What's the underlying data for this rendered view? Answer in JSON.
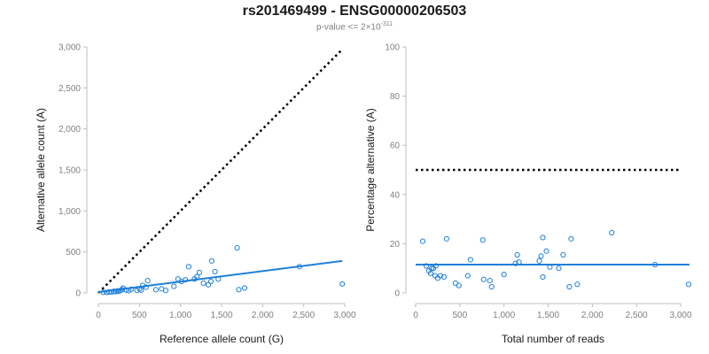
{
  "title": "rs201469499 - ENSG00000206503",
  "subtitle": {
    "prefix": "p-value <= 2×10",
    "exponent": "-311"
  },
  "colors": {
    "accent": "#1f7fd9",
    "reference": "#000000",
    "axis": "#bdbdbd",
    "tick_text": "#7f7f7f"
  },
  "chart_data": [
    {
      "type": "scatter",
      "xlabel": "Reference allele count (G)",
      "ylabel": "Alternative allele count (A)",
      "xlim": [
        0,
        3000
      ],
      "ylim": [
        0,
        3000
      ],
      "x_ticks": [
        0,
        500,
        1000,
        1500,
        2000,
        2500,
        3000
      ],
      "x_tick_labels": [
        "0",
        "500",
        "1,000",
        "1,500",
        "2,000",
        "2,500",
        "3,000"
      ],
      "y_ticks": [
        0,
        500,
        1000,
        1500,
        2000,
        2500,
        3000
      ],
      "y_tick_labels": [
        "0",
        "500",
        "1,000",
        "1,500",
        "2,000",
        "2,500",
        "3,000"
      ],
      "grid": false,
      "points": [
        [
          60,
          8
        ],
        [
          100,
          6
        ],
        [
          130,
          12
        ],
        [
          160,
          10
        ],
        [
          190,
          20
        ],
        [
          210,
          15
        ],
        [
          230,
          25
        ],
        [
          250,
          18
        ],
        [
          270,
          30
        ],
        [
          290,
          40
        ],
        [
          300,
          60
        ],
        [
          340,
          35
        ],
        [
          370,
          28
        ],
        [
          400,
          45
        ],
        [
          470,
          30
        ],
        [
          500,
          50
        ],
        [
          520,
          35
        ],
        [
          540,
          90
        ],
        [
          580,
          70
        ],
        [
          600,
          150
        ],
        [
          700,
          40
        ],
        [
          770,
          50
        ],
        [
          820,
          30
        ],
        [
          920,
          80
        ],
        [
          970,
          170
        ],
        [
          1010,
          140
        ],
        [
          1060,
          160
        ],
        [
          1100,
          320
        ],
        [
          1170,
          170
        ],
        [
          1200,
          200
        ],
        [
          1230,
          250
        ],
        [
          1280,
          120
        ],
        [
          1340,
          100
        ],
        [
          1370,
          140
        ],
        [
          1380,
          390
        ],
        [
          1420,
          260
        ],
        [
          1460,
          170
        ],
        [
          1690,
          550
        ],
        [
          1710,
          40
        ],
        [
          1780,
          60
        ],
        [
          2450,
          320
        ],
        [
          2970,
          110
        ]
      ],
      "lines": [
        {
          "style": "dotted",
          "color": "#000000",
          "x": [
            0,
            2950
          ],
          "y": [
            0,
            2950
          ]
        },
        {
          "style": "solid",
          "color": "#1f7fd9",
          "x": [
            0,
            2970
          ],
          "y": [
            10,
            390
          ]
        }
      ]
    },
    {
      "type": "scatter",
      "xlabel": "Total number of reads",
      "ylabel": "Percentage alternative (A)",
      "xlim": [
        0,
        3100
      ],
      "ylim": [
        0,
        100
      ],
      "x_ticks": [
        0,
        500,
        1000,
        1500,
        2000,
        2500,
        3000
      ],
      "x_tick_labels": [
        "0",
        "500",
        "1,000",
        "1,500",
        "2,000",
        "2,500",
        "3,000"
      ],
      "y_ticks": [
        0,
        20,
        40,
        60,
        80,
        100
      ],
      "y_tick_labels": [
        "0",
        "20",
        "40",
        "60",
        "80",
        "100"
      ],
      "grid": false,
      "points": [
        [
          80,
          21
        ],
        [
          120,
          11
        ],
        [
          150,
          9
        ],
        [
          170,
          8
        ],
        [
          180,
          10
        ],
        [
          200,
          10
        ],
        [
          220,
          7
        ],
        [
          230,
          11
        ],
        [
          250,
          6
        ],
        [
          280,
          7
        ],
        [
          320,
          6.5
        ],
        [
          350,
          22
        ],
        [
          450,
          4
        ],
        [
          490,
          3
        ],
        [
          590,
          7
        ],
        [
          620,
          13.5
        ],
        [
          760,
          21.5
        ],
        [
          770,
          5.5
        ],
        [
          840,
          5
        ],
        [
          860,
          2.5
        ],
        [
          1000,
          7.5
        ],
        [
          1130,
          12
        ],
        [
          1150,
          15.5
        ],
        [
          1170,
          12.5
        ],
        [
          1400,
          13
        ],
        [
          1420,
          15
        ],
        [
          1440,
          22.5
        ],
        [
          1440,
          6.5
        ],
        [
          1480,
          17
        ],
        [
          1520,
          10.5
        ],
        [
          1620,
          10
        ],
        [
          1670,
          15.5
        ],
        [
          1740,
          2.5
        ],
        [
          1760,
          22
        ],
        [
          1830,
          3.5
        ],
        [
          2220,
          24.5
        ],
        [
          2710,
          11.5
        ],
        [
          3090,
          3.5
        ]
      ],
      "lines": [
        {
          "style": "dotted",
          "color": "#000000",
          "x": [
            0,
            3000
          ],
          "y": [
            50,
            50
          ]
        },
        {
          "style": "solid",
          "color": "#1f7fd9",
          "x": [
            0,
            3100
          ],
          "y": [
            11.5,
            11.5
          ]
        }
      ]
    }
  ]
}
